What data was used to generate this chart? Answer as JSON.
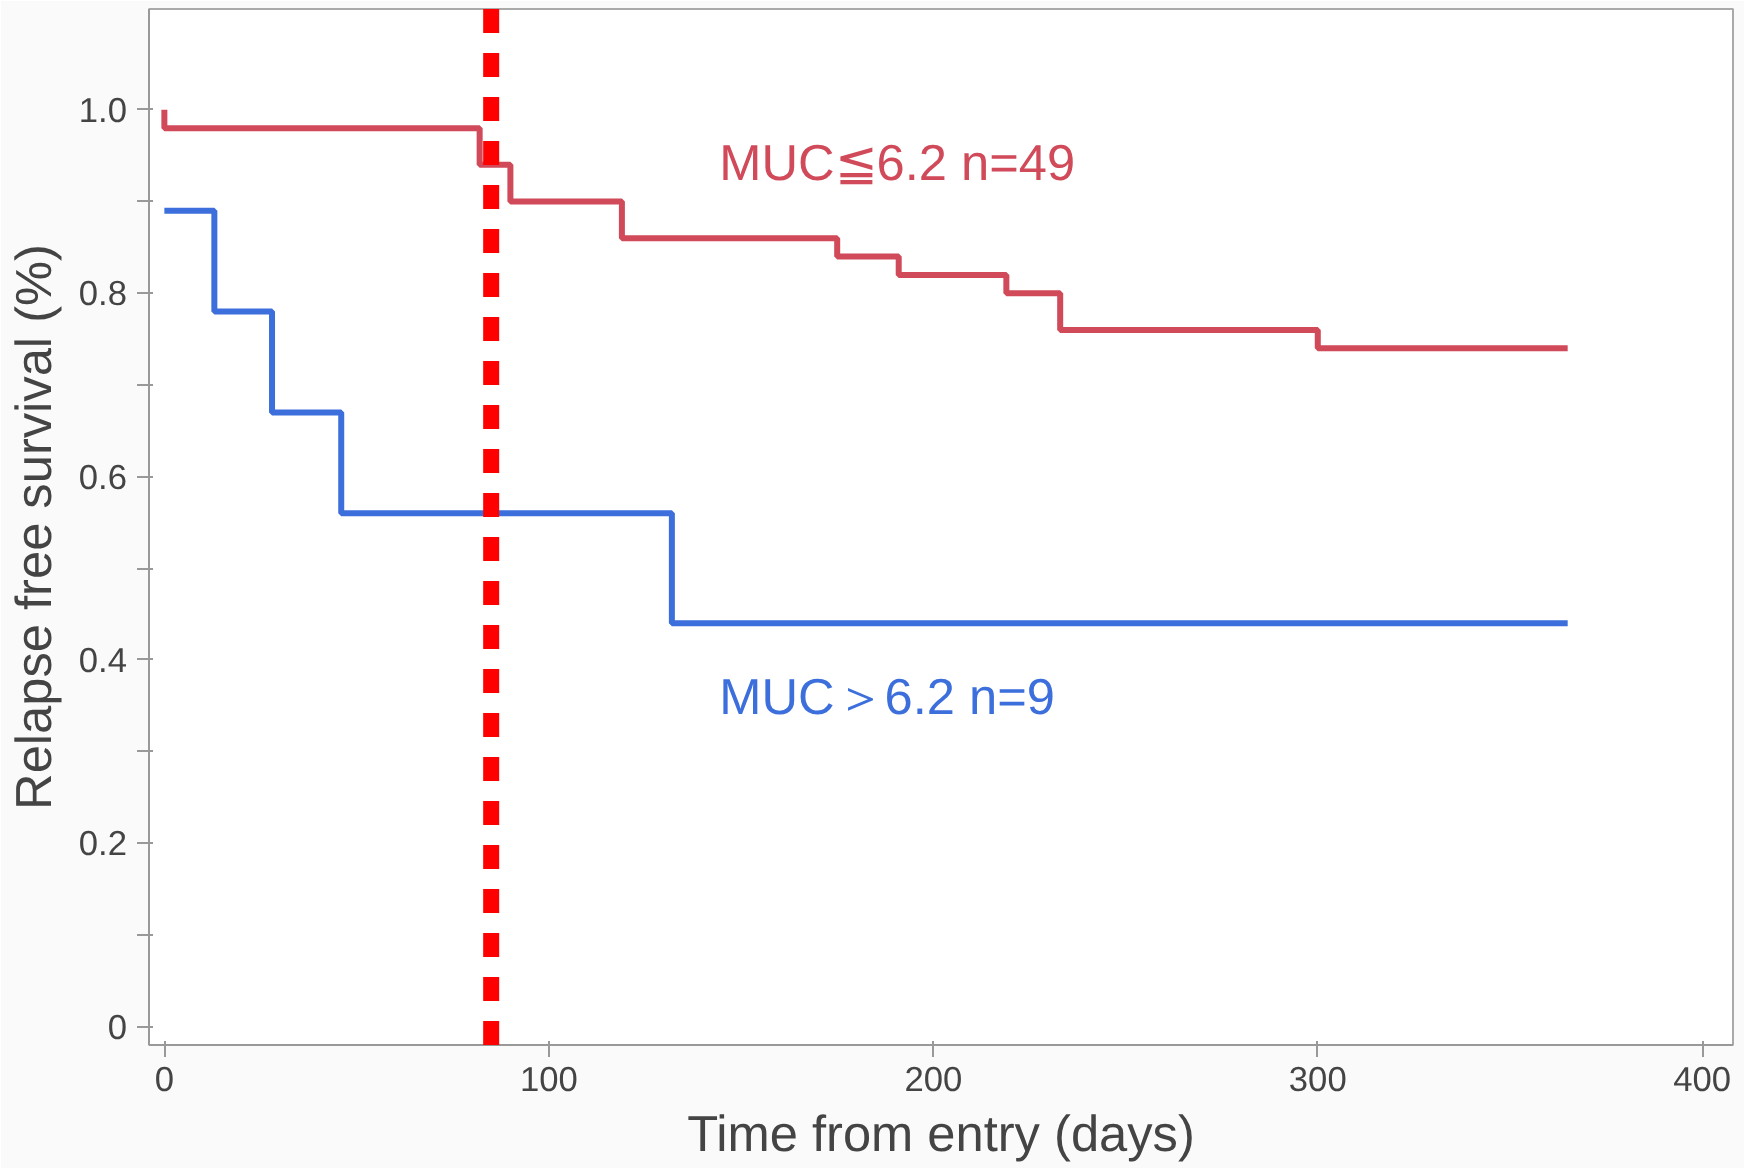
{
  "chart_data": {
    "type": "step",
    "xlabel": "Time from entry (days)",
    "ylabel": "Relapse free survival (%)",
    "xlim": [
      -4,
      408
    ],
    "ylim": [
      -0.02,
      1.11
    ],
    "xticks": [
      0,
      100,
      200,
      300,
      400
    ],
    "yticks": [
      {
        "value": 0,
        "label": "0"
      },
      {
        "value": 0.1,
        "label": null
      },
      0.2,
      {
        "value": 0.3,
        "label": null
      },
      0.4,
      {
        "value": 0.5,
        "label": null
      },
      0.6,
      {
        "value": 0.7,
        "label": null
      },
      0.8,
      {
        "value": 0.9,
        "label": null
      },
      {
        "value": 1,
        "label": "1.0"
      }
    ],
    "grid": false,
    "marker": "none",
    "line_style": "solid",
    "series": [
      {
        "name": "MUC≦6.2 n=49",
        "color": "#d04a5a",
        "x": [
          0,
          0,
          82,
          90,
          119,
          175,
          191,
          219,
          233,
          300,
          365
        ],
        "values": [
          1.0,
          0.98,
          0.94,
          0.9,
          0.86,
          0.84,
          0.82,
          0.8,
          0.76,
          0.74,
          0.74
        ]
      },
      {
        "name": "MUC＞6.2 n=9",
        "color": "#3c6fdc",
        "x": [
          0,
          13,
          28,
          46,
          132,
          365
        ],
        "values": [
          0.89,
          0.78,
          0.67,
          0.56,
          0.44,
          0.44
        ]
      }
    ],
    "ref_lines": [
      {
        "axis": "x",
        "value": 85,
        "color": "#ff0000",
        "line_style": "dashed"
      }
    ]
  }
}
